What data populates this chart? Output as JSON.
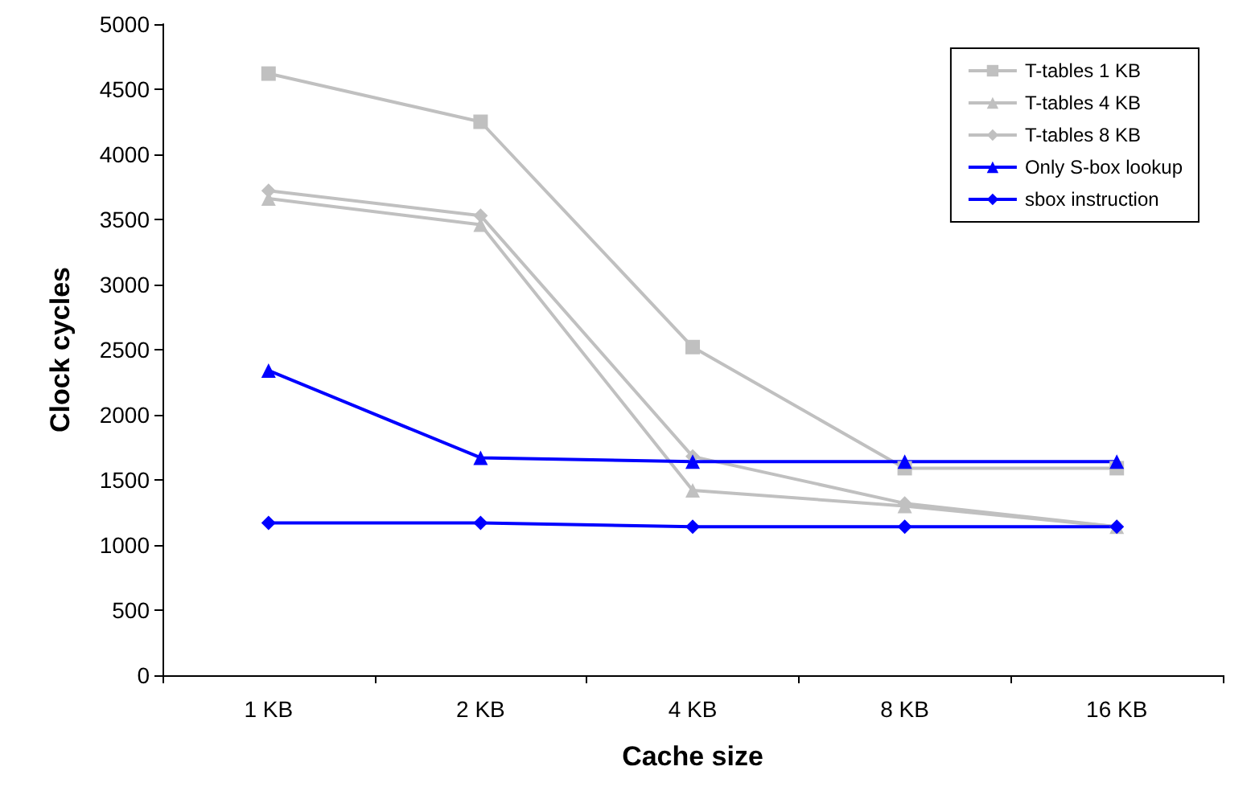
{
  "chart_data": {
    "type": "line",
    "xlabel": "Cache size",
    "ylabel": "Clock cycles",
    "categories": [
      "1 KB",
      "2 KB",
      "4 KB",
      "8 KB",
      "16 KB"
    ],
    "ylim": [
      0,
      5000
    ],
    "yticks": [
      0,
      500,
      1000,
      1500,
      2000,
      2500,
      3000,
      3500,
      4000,
      4500,
      5000
    ],
    "grid": false,
    "legend": "top right",
    "series": [
      {
        "name": "T-tables 1 KB",
        "color": "#c0c0c0",
        "marker": "square",
        "values": [
          4620,
          4250,
          2520,
          1590,
          1590
        ]
      },
      {
        "name": "T-tables 4 KB",
        "color": "#c0c0c0",
        "marker": "triangle",
        "values": [
          3660,
          3460,
          1420,
          1300,
          1140
        ]
      },
      {
        "name": "T-tables 8 KB",
        "color": "#c0c0c0",
        "marker": "diamond",
        "values": [
          3720,
          3530,
          1680,
          1320,
          1140
        ]
      },
      {
        "name": "Only S-box lookup",
        "color": "#0000ff",
        "marker": "triangle",
        "values": [
          2340,
          1670,
          1640,
          1640,
          1640
        ]
      },
      {
        "name": "sbox instruction",
        "color": "#0000ff",
        "marker": "diamond",
        "values": [
          1170,
          1170,
          1140,
          1140,
          1140
        ]
      }
    ]
  }
}
